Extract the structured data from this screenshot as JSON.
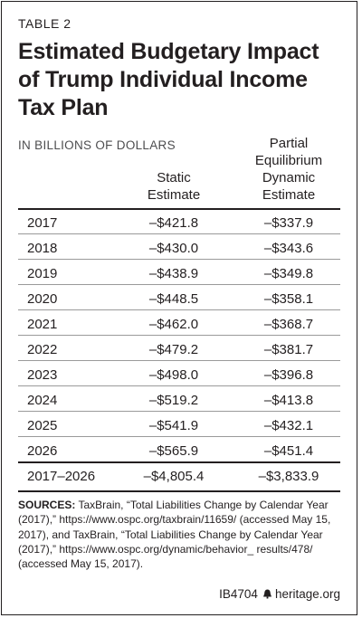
{
  "table": {
    "label": "TABLE 2",
    "title": "Estimated Budgetary Impact of Trump Individual Income Tax Plan",
    "units": "IN BILLIONS OF DOLLARS",
    "columns": {
      "static": [
        "Static",
        "Estimate"
      ],
      "dynamic": [
        "Partial",
        "Equilibrium",
        "Dynamic",
        "Estimate"
      ]
    },
    "rows": [
      {
        "year": "2017",
        "static": "–$421.8",
        "dynamic": "–$337.9"
      },
      {
        "year": "2018",
        "static": "–$430.0",
        "dynamic": "–$343.6"
      },
      {
        "year": "2019",
        "static": "–$438.9",
        "dynamic": "–$349.8"
      },
      {
        "year": "2020",
        "static": "–$448.5",
        "dynamic": "–$358.1"
      },
      {
        "year": "2021",
        "static": "–$462.0",
        "dynamic": "–$368.7"
      },
      {
        "year": "2022",
        "static": "–$479.2",
        "dynamic": "–$381.7"
      },
      {
        "year": "2023",
        "static": "–$498.0",
        "dynamic": "–$396.8"
      },
      {
        "year": "2024",
        "static": "–$519.2",
        "dynamic": "–$413.8"
      },
      {
        "year": "2025",
        "static": "–$541.9",
        "dynamic": "–$432.1"
      },
      {
        "year": "2026",
        "static": "–$565.9",
        "dynamic": "–$451.4"
      }
    ],
    "total": {
      "year": "2017–2026",
      "static": "–$4,805.4",
      "dynamic": "–$3,833.9"
    }
  },
  "sources": {
    "label": "SOURCES:",
    "text": "TaxBrain, “Total Liabilities Change by Calendar Year (2017),” https://www.ospc.org/taxbrain/11659/ (accessed May 15, 2017), and TaxBrain, “Total Liabilities Change by Calendar Year (2017),” https://www.ospc.org/dynamic/behavior_ results/478/ (accessed May 15, 2017)."
  },
  "footer": {
    "id": "IB4704",
    "icon": "liberty-bell-icon",
    "site": "heritage.org"
  },
  "colors": {
    "text": "#231f20",
    "rule": "#9a9a9a",
    "muted": "#4d4d4f"
  }
}
